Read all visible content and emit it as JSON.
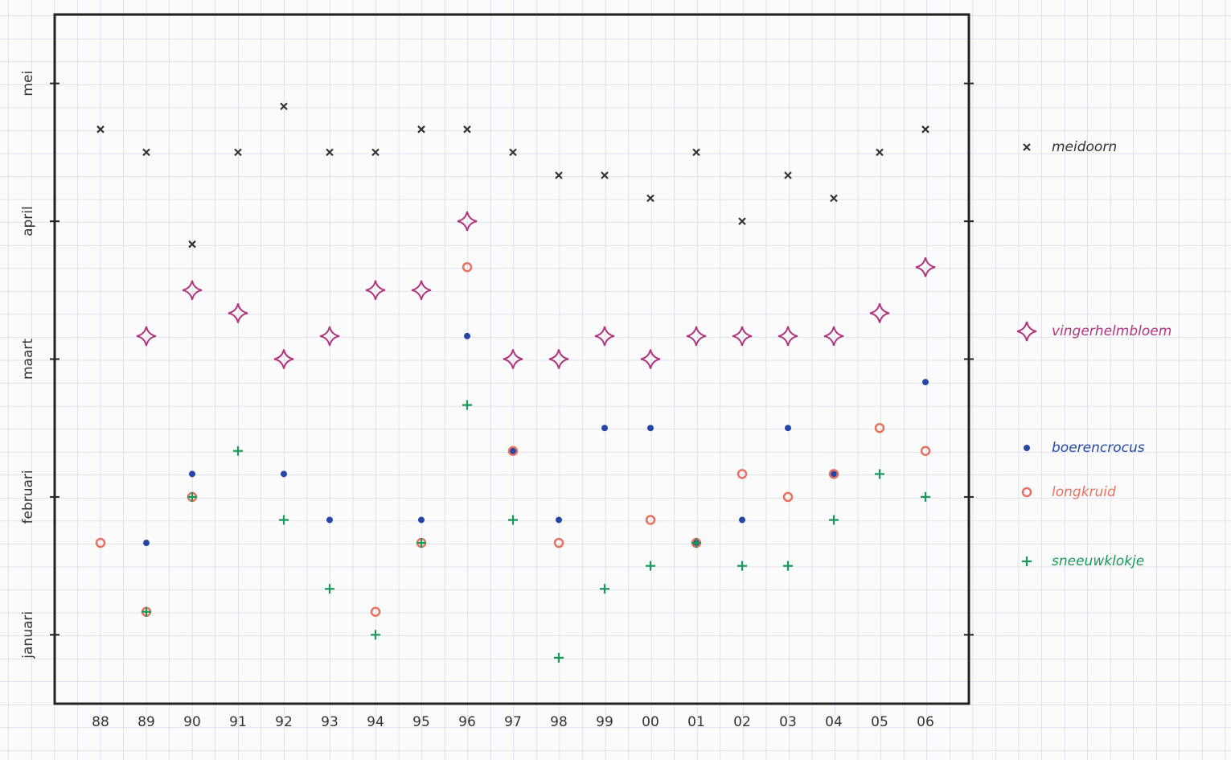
{
  "chart_data": {
    "type": "scatter",
    "categories": [
      "88",
      "89",
      "90",
      "91",
      "92",
      "93",
      "94",
      "95",
      "96",
      "97",
      "98",
      "99",
      "00",
      "01",
      "02",
      "03",
      "04",
      "05",
      "06"
    ],
    "ylim": [
      0,
      30
    ],
    "yticks": [
      {
        "value": 3,
        "label": "januari"
      },
      {
        "value": 9,
        "label": "februari"
      },
      {
        "value": 15,
        "label": "maart"
      },
      {
        "value": 21,
        "label": "april"
      },
      {
        "value": 27,
        "label": "mei"
      }
    ],
    "grid": true,
    "legend": "right",
    "series": [
      {
        "name": "meidoorn",
        "color": "#333333",
        "marker": "x",
        "values": [
          25,
          24,
          20,
          24,
          26,
          24,
          24,
          25,
          25,
          24,
          23,
          23,
          22,
          24,
          21,
          23,
          22,
          24,
          25
        ]
      },
      {
        "name": "vingerhelmbloem",
        "color": "#b0367e",
        "marker": "star",
        "values": [
          null,
          16,
          18,
          17,
          15,
          16,
          18,
          18,
          21,
          15,
          15,
          16,
          15,
          16,
          16,
          16,
          16,
          17,
          19
        ]
      },
      {
        "name": "boerencrocus",
        "color": "#2447a8",
        "marker": "dot",
        "values": [
          null,
          7,
          10,
          null,
          10,
          8,
          null,
          8,
          16,
          11,
          8,
          12,
          12,
          7,
          8,
          12,
          10,
          null,
          14
        ]
      },
      {
        "name": "longkruid",
        "color": "#e8725f",
        "marker": "ring",
        "values": [
          7,
          4,
          9,
          null,
          null,
          null,
          4,
          7,
          19,
          11,
          7,
          null,
          8,
          7,
          10,
          9,
          10,
          12,
          11
        ]
      },
      {
        "name": "sneeuwklokje",
        "color": "#1a9a5a",
        "marker": "plus",
        "values": [
          null,
          4,
          9,
          11,
          8,
          5,
          3,
          7,
          13,
          8,
          2,
          5,
          6,
          7,
          6,
          6,
          8,
          10,
          9
        ]
      }
    ]
  }
}
